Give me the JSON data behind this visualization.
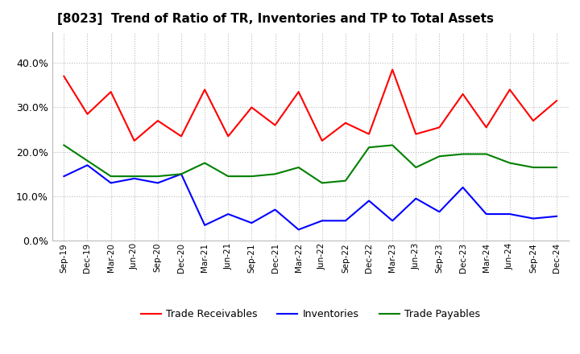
{
  "title": "[8023]  Trend of Ratio of TR, Inventories and TP to Total Assets",
  "x_labels": [
    "Sep-19",
    "Dec-19",
    "Mar-20",
    "Jun-20",
    "Sep-20",
    "Dec-20",
    "Mar-21",
    "Jun-21",
    "Sep-21",
    "Dec-21",
    "Mar-22",
    "Jun-22",
    "Sep-22",
    "Dec-22",
    "Mar-23",
    "Jun-23",
    "Sep-23",
    "Dec-23",
    "Mar-24",
    "Jun-24",
    "Sep-24",
    "Dec-24"
  ],
  "trade_receivables": [
    0.37,
    0.285,
    0.335,
    0.225,
    0.27,
    0.235,
    0.34,
    0.235,
    0.3,
    0.26,
    0.335,
    0.225,
    0.265,
    0.24,
    0.385,
    0.24,
    0.255,
    0.33,
    0.255,
    0.34,
    0.27,
    0.315
  ],
  "inventories": [
    0.145,
    0.17,
    0.13,
    0.14,
    0.13,
    0.15,
    0.035,
    0.06,
    0.04,
    0.07,
    0.025,
    0.045,
    0.045,
    0.09,
    0.045,
    0.095,
    0.065,
    0.12,
    0.06,
    0.06,
    0.05,
    0.055
  ],
  "trade_payables": [
    0.215,
    0.18,
    0.145,
    0.145,
    0.145,
    0.15,
    0.175,
    0.145,
    0.145,
    0.15,
    0.165,
    0.13,
    0.135,
    0.21,
    0.215,
    0.165,
    0.19,
    0.195,
    0.195,
    0.175,
    0.165,
    0.165
  ],
  "line_colors": {
    "trade_receivables": "#FF0000",
    "inventories": "#0000FF",
    "trade_payables": "#008000"
  },
  "ylim": [
    0.0,
    0.47
  ],
  "yticks": [
    0.0,
    0.1,
    0.2,
    0.3,
    0.4
  ],
  "background_color": "#FFFFFF",
  "grid_color": "#AAAAAA",
  "title_fontsize": 11,
  "legend_labels": [
    "Trade Receivables",
    "Inventories",
    "Trade Payables"
  ]
}
